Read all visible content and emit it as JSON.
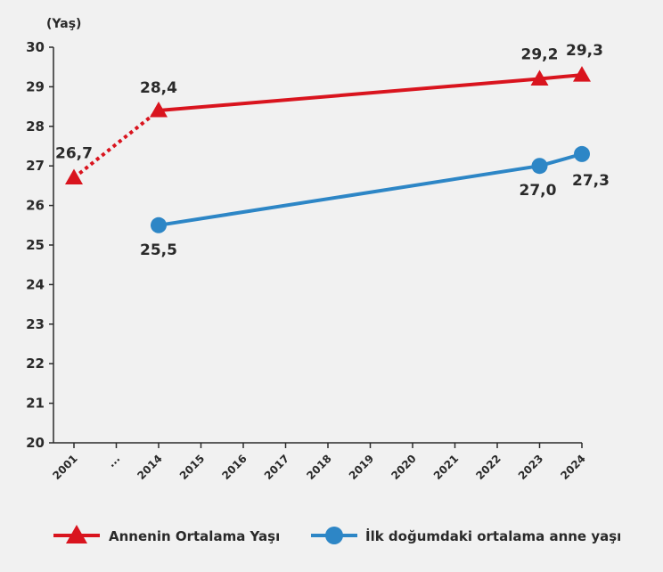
{
  "chart_data": {
    "type": "line",
    "y_unit_label": "(Yaş)",
    "categories": [
      "2001",
      "...",
      "2014",
      "2015",
      "2016",
      "2017",
      "2018",
      "2019",
      "2020",
      "2021",
      "2022",
      "2023",
      "2024"
    ],
    "ylim": [
      20,
      30
    ],
    "yticks": [
      "20",
      "21",
      "22",
      "23",
      "24",
      "25",
      "26",
      "27",
      "28",
      "29",
      "30"
    ],
    "grid": false,
    "legend_position": "bottom",
    "series": [
      {
        "name": "Annenin Ortalama Yaşı",
        "color": "#d9141e",
        "marker": "triangle",
        "points": [
          {
            "x": "2001",
            "y": 26.7,
            "label": "26,7"
          },
          {
            "x": "2014",
            "y": 28.4,
            "label": "28,4"
          },
          {
            "x": "2023",
            "y": 29.2,
            "label": "29,2"
          },
          {
            "x": "2024",
            "y": 29.3,
            "label": "29,3"
          }
        ],
        "dotted_segments": [
          [
            0,
            1
          ]
        ]
      },
      {
        "name": "İlk doğumdaki ortalama anne yaşı",
        "color": "#2d86c6",
        "marker": "circle",
        "points": [
          {
            "x": "2014",
            "y": 25.5,
            "label": "25,5"
          },
          {
            "x": "2023",
            "y": 27.0,
            "label": "27,0"
          },
          {
            "x": "2024",
            "y": 27.3,
            "label": "27,3"
          }
        ],
        "dotted_segments": []
      }
    ]
  }
}
